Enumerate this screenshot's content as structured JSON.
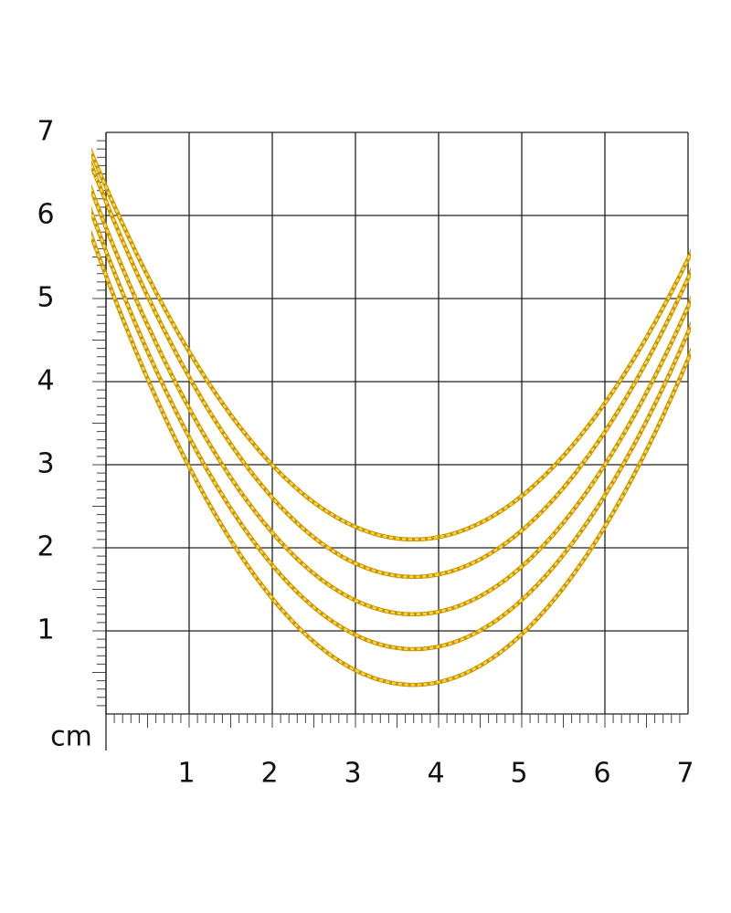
{
  "ruler": {
    "unit": "cm",
    "x_labels": [
      "1",
      "2",
      "3",
      "4",
      "5",
      "6",
      "7"
    ],
    "y_labels": [
      "1",
      "2",
      "3",
      "4",
      "5",
      "6",
      "7"
    ]
  }
}
